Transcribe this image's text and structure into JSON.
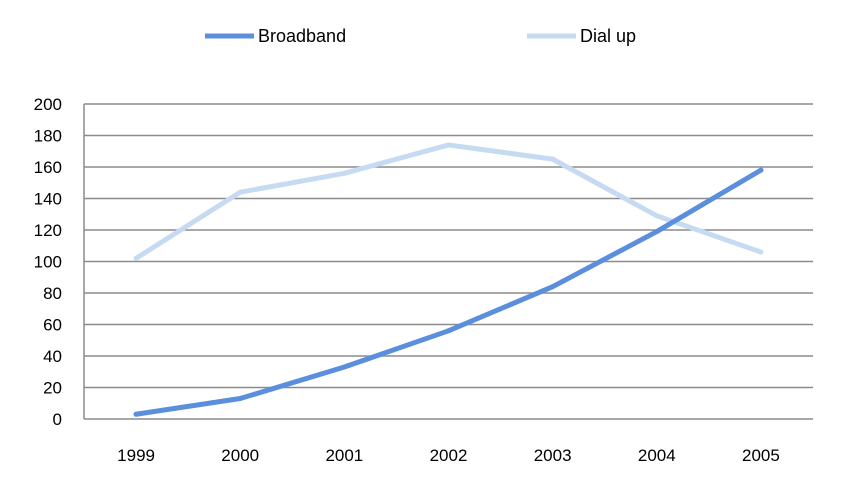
{
  "chart_data": {
    "type": "line",
    "categories": [
      "1999",
      "2000",
      "2001",
      "2002",
      "2003",
      "2004",
      "2005"
    ],
    "series": [
      {
        "name": "Broadband",
        "values": [
          3,
          13,
          33,
          56,
          84,
          119,
          158
        ],
        "color": "#5B8FDE"
      },
      {
        "name": "Dial up",
        "values": [
          102,
          144,
          156,
          174,
          165,
          129,
          106
        ],
        "color": "#C6DBF1"
      }
    ],
    "title": "",
    "xlabel": "",
    "ylabel": "",
    "ylim": [
      0,
      200
    ],
    "yticks": [
      "0",
      "20",
      "40",
      "60",
      "80",
      "100",
      "120",
      "140",
      "160",
      "180",
      "200"
    ],
    "grid": true,
    "legend_position": "top"
  }
}
